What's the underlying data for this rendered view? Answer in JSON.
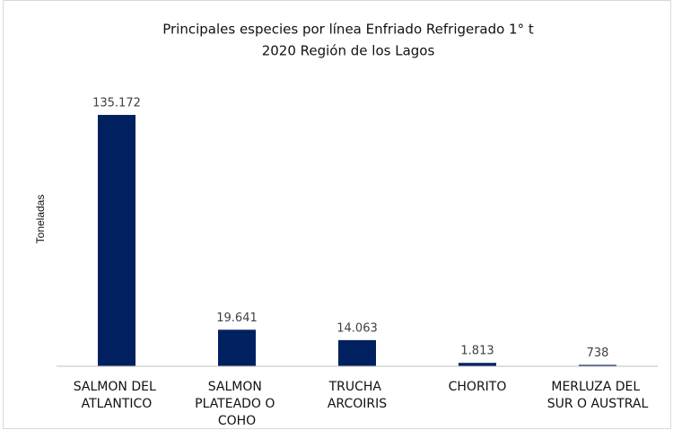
{
  "chart_data": {
    "type": "bar",
    "title": [
      "Principales especies por línea Enfriado Refrigerado 1° t",
      "2020 Región de los Lagos"
    ],
    "y_label": "Toneladas",
    "categories": [
      "SALMON DEL ATLANTICO",
      "SALMON PLATEADO O COHO",
      "TRUCHA ARCOIRIS",
      "CHORITO",
      "MERLUZA DEL SUR O AUSTRAL"
    ],
    "values": [
      135172,
      19641,
      14063,
      1813,
      738
    ],
    "value_labels": [
      "135.172",
      "19.641",
      "14.063",
      "1.813",
      "738"
    ],
    "color": "#002060",
    "ylim": [
      0,
      140000
    ]
  }
}
